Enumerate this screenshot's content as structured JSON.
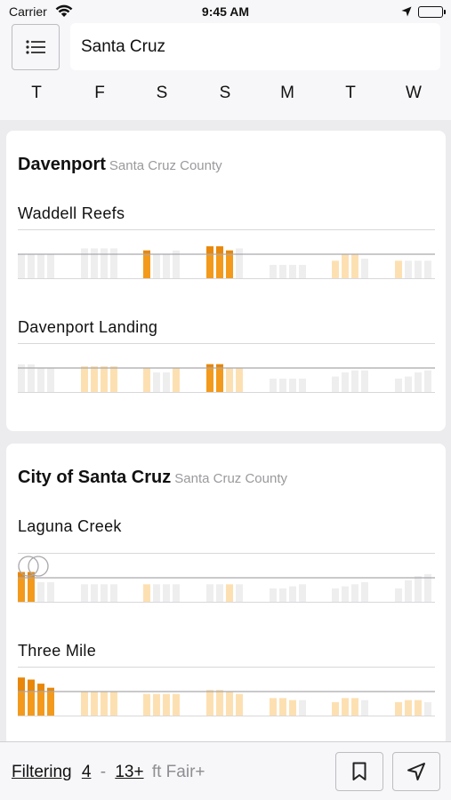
{
  "status_bar": {
    "carrier": "Carrier",
    "time": "9:45 AM"
  },
  "search": {
    "value": "Santa Cruz"
  },
  "days": [
    "T",
    "F",
    "S",
    "S",
    "M",
    "T",
    "W"
  ],
  "colors": {
    "strong": "#f39a1c",
    "strong_dark": "#e8870a",
    "light": "#fde0b2",
    "empty": "#eeeeef",
    "line": "#d8d8db"
  },
  "regions": [
    {
      "title": "Davenport",
      "county": "Santa Cruz County",
      "spots": [
        {
          "name": "Waddell Reefs",
          "days": [
            [
              [
                "e",
                0.6
              ],
              [
                "e",
                0.6
              ],
              [
                "e",
                0.6
              ],
              [
                "e",
                0.6
              ]
            ],
            [
              [
                "e",
                0.75
              ],
              [
                "e",
                0.75
              ],
              [
                "e",
                0.75
              ],
              [
                "e",
                0.75
              ]
            ],
            [
              [
                "s",
                0.7
              ],
              [
                "e",
                0.6
              ],
              [
                "e",
                0.6
              ],
              [
                "e",
                0.7
              ]
            ],
            [
              [
                "s",
                0.8
              ],
              [
                "s",
                0.8
              ],
              [
                "s",
                0.7
              ],
              [
                "e",
                0.75
              ]
            ],
            [
              [
                "e",
                0.35
              ],
              [
                "e",
                0.35
              ],
              [
                "e",
                0.35
              ],
              [
                "e",
                0.35
              ]
            ],
            [
              [
                "l",
                0.45
              ],
              [
                "l",
                0.6
              ],
              [
                "l",
                0.6
              ],
              [
                "e",
                0.5
              ]
            ],
            [
              [
                "l",
                0.45
              ],
              [
                "e",
                0.45
              ],
              [
                "e",
                0.45
              ],
              [
                "e",
                0.45
              ]
            ]
          ]
        },
        {
          "name": "Davenport Landing",
          "days": [
            [
              [
                "e",
                0.7
              ],
              [
                "e",
                0.7
              ],
              [
                "e",
                0.6
              ],
              [
                "e",
                0.6
              ]
            ],
            [
              [
                "l",
                0.65
              ],
              [
                "l",
                0.65
              ],
              [
                "l",
                0.65
              ],
              [
                "l",
                0.65
              ]
            ],
            [
              [
                "l",
                0.6
              ],
              [
                "e",
                0.5
              ],
              [
                "e",
                0.5
              ],
              [
                "l",
                0.6
              ]
            ],
            [
              [
                "s",
                0.7
              ],
              [
                "s",
                0.7
              ],
              [
                "l",
                0.6
              ],
              [
                "l",
                0.6
              ]
            ],
            [
              [
                "e",
                0.35
              ],
              [
                "e",
                0.35
              ],
              [
                "e",
                0.35
              ],
              [
                "e",
                0.35
              ]
            ],
            [
              [
                "e",
                0.4
              ],
              [
                "e",
                0.5
              ],
              [
                "e",
                0.55
              ],
              [
                "e",
                0.55
              ]
            ],
            [
              [
                "e",
                0.35
              ],
              [
                "e",
                0.4
              ],
              [
                "e",
                0.5
              ],
              [
                "e",
                0.55
              ]
            ]
          ]
        }
      ]
    },
    {
      "title": "City of Santa Cruz",
      "county": "Santa Cruz County",
      "spots": [
        {
          "name": "Laguna Creek",
          "days": [
            [
              [
                "s",
                0.75
              ],
              [
                "s",
                0.75
              ],
              [
                "e",
                0.5
              ],
              [
                "e",
                0.5
              ]
            ],
            [
              [
                "e",
                0.45
              ],
              [
                "e",
                0.45
              ],
              [
                "e",
                0.45
              ],
              [
                "e",
                0.45
              ]
            ],
            [
              [
                "l",
                0.45
              ],
              [
                "e",
                0.45
              ],
              [
                "e",
                0.45
              ],
              [
                "e",
                0.45
              ]
            ],
            [
              [
                "e",
                0.45
              ],
              [
                "e",
                0.45
              ],
              [
                "l",
                0.45
              ],
              [
                "e",
                0.45
              ]
            ],
            [
              [
                "e",
                0.35
              ],
              [
                "e",
                0.35
              ],
              [
                "e",
                0.4
              ],
              [
                "e",
                0.45
              ]
            ],
            [
              [
                "e",
                0.35
              ],
              [
                "e",
                0.4
              ],
              [
                "e",
                0.45
              ],
              [
                "e",
                0.5
              ]
            ],
            [
              [
                "e",
                0.35
              ],
              [
                "e",
                0.55
              ],
              [
                "e",
                0.65
              ],
              [
                "e",
                0.7
              ]
            ]
          ]
        },
        {
          "name": "Three Mile",
          "days": [
            [
              [
                "s",
                0.95
              ],
              [
                "s",
                0.9
              ],
              [
                "s",
                0.8
              ],
              [
                "s",
                0.7
              ]
            ],
            [
              [
                "l",
                0.6
              ],
              [
                "l",
                0.6
              ],
              [
                "l",
                0.6
              ],
              [
                "l",
                0.6
              ]
            ],
            [
              [
                "l",
                0.55
              ],
              [
                "l",
                0.55
              ],
              [
                "l",
                0.55
              ],
              [
                "l",
                0.55
              ]
            ],
            [
              [
                "l",
                0.65
              ],
              [
                "l",
                0.65
              ],
              [
                "l",
                0.6
              ],
              [
                "l",
                0.55
              ]
            ],
            [
              [
                "l",
                0.45
              ],
              [
                "l",
                0.45
              ],
              [
                "l",
                0.4
              ],
              [
                "e",
                0.4
              ]
            ],
            [
              [
                "l",
                0.35
              ],
              [
                "l",
                0.45
              ],
              [
                "l",
                0.45
              ],
              [
                "e",
                0.4
              ]
            ],
            [
              [
                "l",
                0.35
              ],
              [
                "l",
                0.4
              ],
              [
                "l",
                0.4
              ],
              [
                "e",
                0.35
              ]
            ]
          ]
        }
      ]
    }
  ],
  "filter": {
    "label": "Filtering",
    "min": "4",
    "dash": "-",
    "max": "13+",
    "unit": "ft Fair+"
  },
  "icons": {
    "menu": "list-icon",
    "bookmark": "bookmark-icon",
    "location": "location-arrow-icon"
  }
}
